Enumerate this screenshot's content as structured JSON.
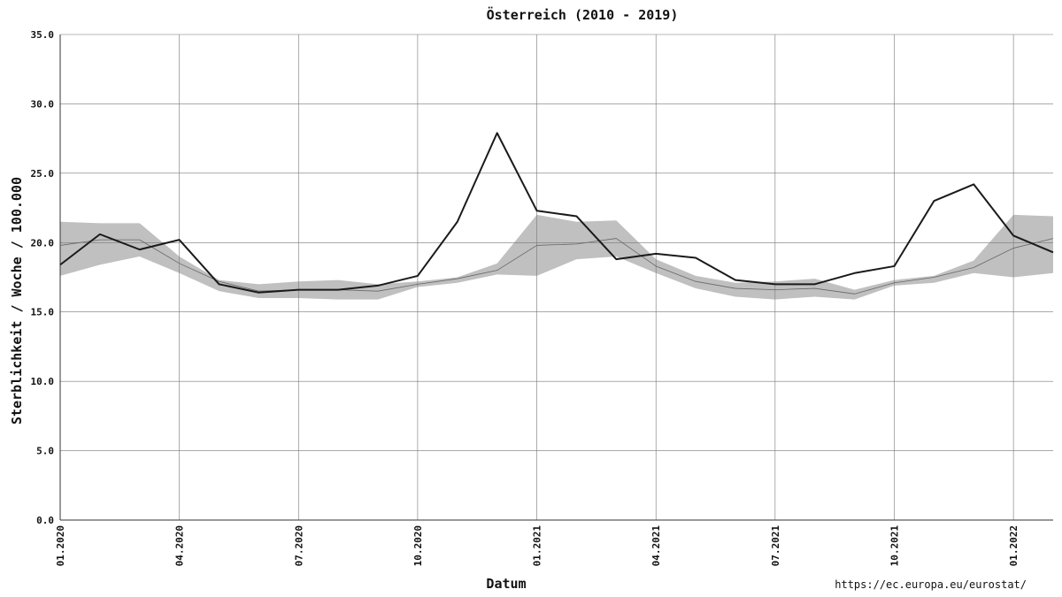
{
  "chart_data": {
    "type": "line",
    "title": "Österreich (2010 - 2019)",
    "x_label": "Datum",
    "y_label": "Sterblichkeit / Woche / 100.000",
    "source": "https://ec.europa.eu/eurostat/",
    "x": [
      "2020-01",
      "2020-02",
      "2020-03",
      "2020-04",
      "2020-05",
      "2020-06",
      "2020-07",
      "2020-08",
      "2020-09",
      "2020-10",
      "2020-11",
      "2020-12",
      "2021-01",
      "2021-02",
      "2021-03",
      "2021-04",
      "2021-05",
      "2021-06",
      "2021-07",
      "2021-08",
      "2021-09",
      "2021-10",
      "2021-11",
      "2021-12",
      "2022-01",
      "2022-02"
    ],
    "xlim": [
      "2020-01",
      "2022-02"
    ],
    "xticks": [
      {
        "value": "2020-01",
        "label": "01.2020"
      },
      {
        "value": "2020-04",
        "label": "04.2020"
      },
      {
        "value": "2020-07",
        "label": "07.2020"
      },
      {
        "value": "2020-10",
        "label": "10.2020"
      },
      {
        "value": "2021-01",
        "label": "01.2021"
      },
      {
        "value": "2021-04",
        "label": "04.2021"
      },
      {
        "value": "2021-07",
        "label": "07.2021"
      },
      {
        "value": "2021-10",
        "label": "10.2021"
      },
      {
        "value": "2022-01",
        "label": "01.2022"
      }
    ],
    "ylim": [
      0,
      35
    ],
    "yticks": [
      {
        "value": 0,
        "label": "0.0"
      },
      {
        "value": 5,
        "label": "5.0"
      },
      {
        "value": 10,
        "label": "10.0"
      },
      {
        "value": 15,
        "label": "15.0"
      },
      {
        "value": 20,
        "label": "20.0"
      },
      {
        "value": 25,
        "label": "25.0"
      },
      {
        "value": 30,
        "label": "30.0"
      },
      {
        "value": 35,
        "label": "35.0"
      }
    ],
    "grid": true,
    "band": {
      "color": "#c0c0c0",
      "low": [
        17.6,
        18.4,
        19.0,
        17.8,
        16.5,
        16.0,
        16.0,
        15.9,
        15.9,
        16.8,
        17.1,
        17.7,
        17.6,
        18.8,
        19.0,
        17.8,
        16.7,
        16.1,
        15.9,
        16.1,
        15.9,
        16.9,
        17.1,
        17.8,
        17.5,
        17.8
      ],
      "high": [
        21.5,
        21.4,
        21.4,
        19.0,
        17.3,
        17.0,
        17.2,
        17.3,
        17.0,
        17.2,
        17.5,
        18.5,
        22.0,
        21.5,
        21.6,
        18.8,
        17.6,
        17.1,
        17.2,
        17.4,
        16.6,
        17.3,
        17.6,
        18.7,
        22.0,
        21.9
      ]
    },
    "series": [
      {
        "color": "#666666",
        "width": 0.8,
        "values": [
          19.8,
          20.2,
          20.2,
          18.5,
          17.2,
          16.5,
          16.6,
          16.6,
          16.5,
          17.0,
          17.4,
          18.0,
          19.8,
          19.9,
          20.3,
          18.3,
          17.2,
          16.7,
          16.6,
          16.7,
          16.3,
          17.1,
          17.5,
          18.2,
          19.6,
          20.3
        ]
      },
      {
        "color": "#1a1a1a",
        "width": 2,
        "values": [
          18.4,
          20.6,
          19.5,
          20.2,
          17.0,
          16.4,
          16.6,
          16.6,
          16.9,
          17.6,
          21.5,
          27.9,
          22.3,
          21.9,
          18.8,
          19.2,
          18.9,
          17.3,
          17.0,
          17.0,
          17.8,
          18.3,
          23.0,
          24.2,
          20.5,
          19.3
        ]
      }
    ]
  }
}
